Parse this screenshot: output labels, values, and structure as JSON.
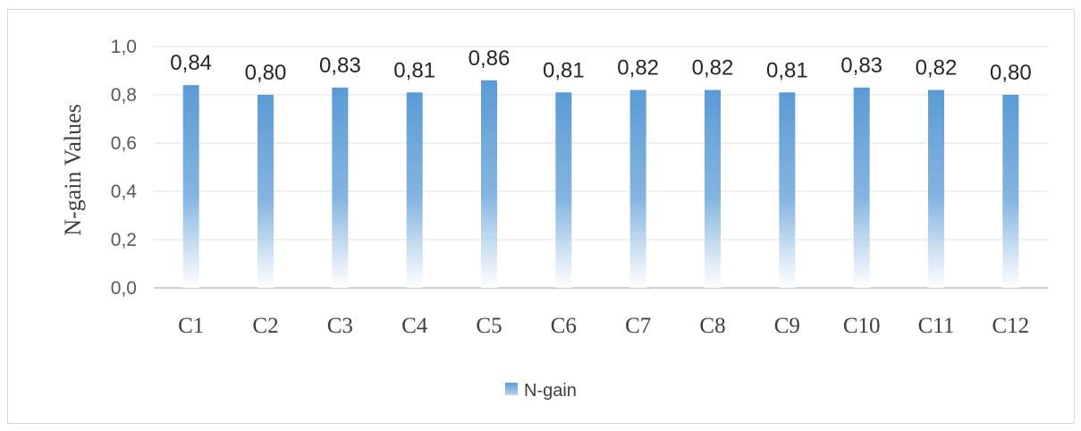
{
  "chart_data": {
    "type": "bar",
    "title": "",
    "xlabel": "",
    "ylabel": "N-gain Values",
    "categories": [
      "C1",
      "C2",
      "C3",
      "C4",
      "C5",
      "C6",
      "C7",
      "C8",
      "C9",
      "C10",
      "C11",
      "C12"
    ],
    "series": [
      {
        "name": "N-gain",
        "values": [
          0.84,
          0.8,
          0.83,
          0.81,
          0.86,
          0.81,
          0.82,
          0.82,
          0.81,
          0.83,
          0.82,
          0.8
        ],
        "labels": [
          "0,84",
          "0,80",
          "0,83",
          "0,81",
          "0,86",
          "0,81",
          "0,82",
          "0,82",
          "0,81",
          "0,83",
          "0,82",
          "0,80"
        ]
      }
    ],
    "ylim": [
      0,
      1.0
    ],
    "yticks": [
      0.0,
      0.2,
      0.4,
      0.6,
      0.8,
      1.0
    ],
    "ytick_labels": [
      "0,0",
      "0,2",
      "0,4",
      "0,6",
      "0,8",
      "1,0"
    ],
    "grid": true,
    "legend_position": "bottom",
    "bar_color": "#5b9bd5"
  }
}
